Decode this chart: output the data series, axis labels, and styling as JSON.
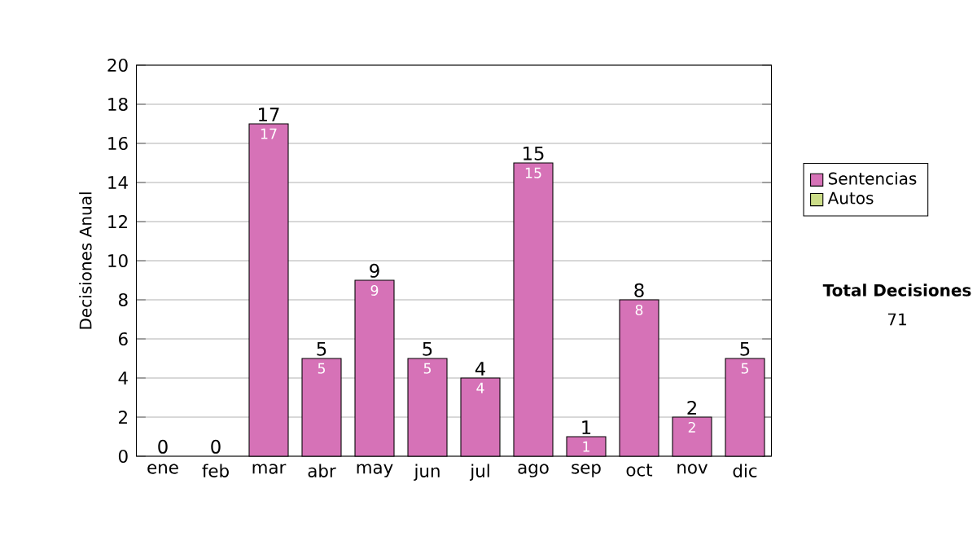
{
  "chart_data": {
    "type": "bar",
    "stacked": true,
    "ylabel": "Decisiones Anual",
    "categories": [
      "ene",
      "feb",
      "mar",
      "abr",
      "may",
      "jun",
      "jul",
      "ago",
      "sep",
      "oct",
      "nov",
      "dic"
    ],
    "series": [
      {
        "name": "Sentencias",
        "color": "#d672b7",
        "values": [
          0,
          0,
          17,
          5,
          9,
          5,
          4,
          15,
          1,
          8,
          2,
          5
        ],
        "value_labels": [
          null,
          null,
          "17",
          "5",
          "9",
          "5",
          "4",
          "15",
          "1",
          "8",
          "2",
          "5"
        ]
      },
      {
        "name": "Autos",
        "color": "#ccdd88",
        "values": [
          0,
          0,
          0,
          0,
          0,
          0,
          0,
          0,
          0,
          0,
          0,
          0
        ]
      }
    ],
    "totals": [
      "0",
      "0",
      "17",
      "5",
      "9",
      "5",
      "4",
      "15",
      "1",
      "8",
      "2",
      "5"
    ],
    "ylim": [
      0,
      20
    ],
    "yticks": [
      0,
      2,
      4,
      6,
      8,
      10,
      12,
      14,
      16,
      18,
      20
    ],
    "grid": "y",
    "legend": "right",
    "annotations": [
      "Total Decisiones",
      "71"
    ]
  }
}
